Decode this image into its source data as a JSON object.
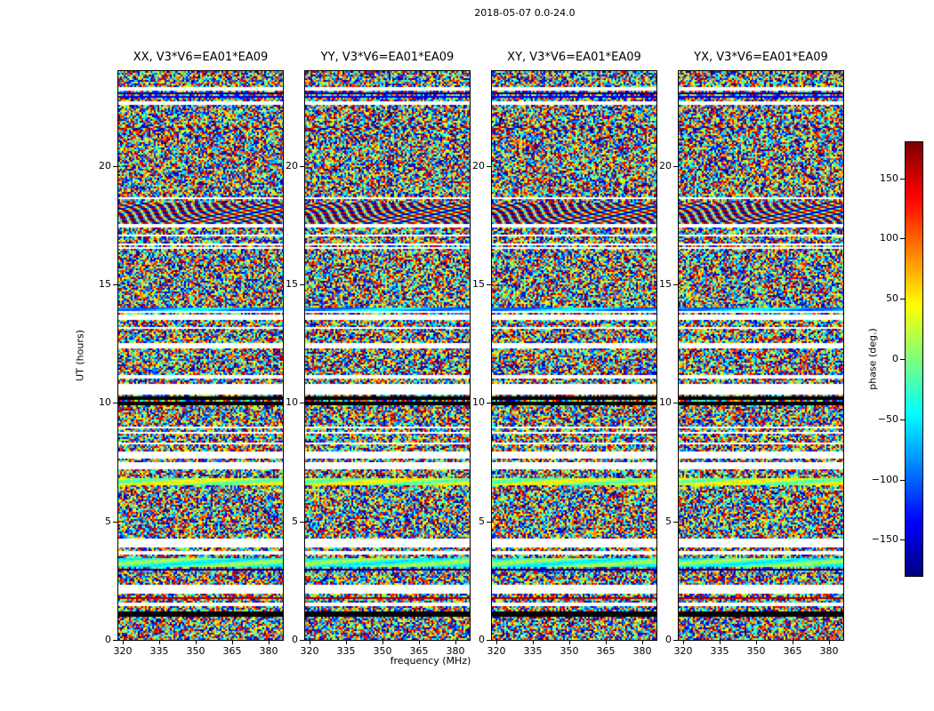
{
  "chart_data": {
    "type": "heatmap",
    "title": "2018-05-07 0.0-24.0",
    "panels": [
      {
        "title": "XX, V3*V6=EA01*EA09"
      },
      {
        "title": "YY, V3*V6=EA01*EA09"
      },
      {
        "title": "XY, V3*V6=EA01*EA09"
      },
      {
        "title": "YX, V3*V6=EA01*EA09"
      }
    ],
    "xlabel": "frequency (MHz)",
    "ylabel": "UT (hours)",
    "x_ticks": [
      320,
      335,
      350,
      365,
      380
    ],
    "x_range": [
      318,
      386
    ],
    "y_ticks": [
      0,
      5,
      10,
      15,
      20
    ],
    "y_range": [
      0,
      24
    ],
    "colorbar": {
      "label": "phase (deg.)",
      "ticks": [
        150,
        100,
        50,
        0,
        -50,
        -100,
        -150
      ],
      "range": [
        -180,
        180
      ],
      "colormap": "jet"
    },
    "noise_seed": 42,
    "solid_regions": [
      [
        18.9,
        22.45
      ],
      [
        14.5,
        16.35
      ],
      [
        11.15,
        11.9
      ],
      [
        8.75,
        9.55
      ],
      [
        4.4,
        5.15
      ]
    ],
    "features": [
      {
        "ut": [
          0.95,
          1.2
        ],
        "type": "black"
      },
      {
        "ut": [
          2.9,
          3.02
        ],
        "type": "darkblue"
      },
      {
        "ut": [
          3.08,
          3.42
        ],
        "type": "smooth",
        "base": 0.45
      },
      {
        "ut": [
          6.55,
          6.85
        ],
        "type": "smooth",
        "base": 0.55
      },
      {
        "ut": [
          9.9,
          10.04
        ],
        "type": "black"
      },
      {
        "ut": [
          10.16,
          10.3
        ],
        "type": "black"
      },
      {
        "ut": [
          13.85,
          14.0
        ],
        "type": "smooth",
        "base": 0.3
      },
      {
        "ut": [
          17.55,
          18.45
        ],
        "type": "wavy"
      },
      {
        "ut": [
          21.5,
          21.64
        ],
        "type": "wavy"
      }
    ]
  }
}
